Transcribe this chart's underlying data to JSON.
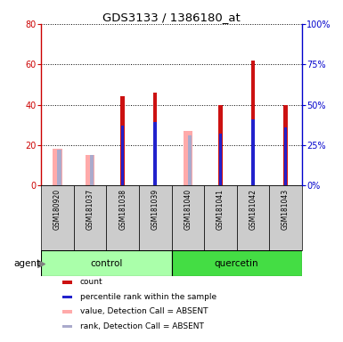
{
  "title": "GDS3133 / 1386180_at",
  "samples": [
    "GSM180920",
    "GSM181037",
    "GSM181038",
    "GSM181039",
    "GSM181040",
    "GSM181041",
    "GSM181042",
    "GSM181043"
  ],
  "red_bars": [
    null,
    null,
    44,
    46,
    null,
    40,
    62,
    40
  ],
  "blue_bars": [
    null,
    null,
    37,
    39,
    null,
    32,
    41,
    36
  ],
  "pink_bars": [
    18,
    15,
    null,
    null,
    27,
    null,
    null,
    null
  ],
  "lightblue_bars": [
    22,
    19,
    null,
    null,
    31,
    null,
    null,
    null
  ],
  "ylim_left": [
    0,
    80
  ],
  "ylim_right": [
    0,
    100
  ],
  "yticks_left": [
    0,
    20,
    40,
    60,
    80
  ],
  "yticks_right": [
    0,
    25,
    50,
    75,
    100
  ],
  "ytick_labels_left": [
    "0",
    "20",
    "40",
    "60",
    "80"
  ],
  "ytick_labels_right": [
    "0%",
    "25%",
    "50%",
    "75%",
    "100%"
  ],
  "left_axis_color": "#cc0000",
  "right_axis_color": "#0000cc",
  "red_color": "#cc1111",
  "blue_color": "#2222cc",
  "pink_color": "#ffaaaa",
  "lightblue_color": "#aaaacc",
  "control_color": "#aaffaa",
  "quercetin_color": "#44dd44",
  "bg_color": "#cccccc",
  "plot_bg": "#ffffff",
  "legend_items": [
    {
      "label": "count",
      "color": "#cc1111"
    },
    {
      "label": "percentile rank within the sample",
      "color": "#2222cc"
    },
    {
      "label": "value, Detection Call = ABSENT",
      "color": "#ffaaaa"
    },
    {
      "label": "rank, Detection Call = ABSENT",
      "color": "#aaaacc"
    }
  ]
}
